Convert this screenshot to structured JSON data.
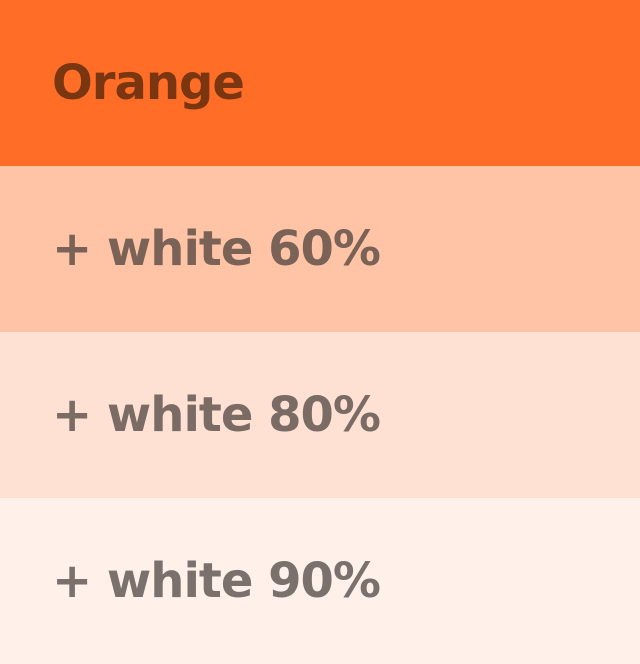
{
  "swatches": [
    {
      "label": "Orange",
      "bg": "#FF6D26",
      "text": "#7A3610"
    },
    {
      "label": "+ white 60%",
      "bg": "#FFC4A6",
      "text": "#7A6257"
    },
    {
      "label": "+ white 80%",
      "bg": "#FFE1D3",
      "text": "#7A6B65"
    },
    {
      "label": "+ white 90%",
      "bg": "#FFF0E9",
      "text": "#7A716D"
    }
  ]
}
